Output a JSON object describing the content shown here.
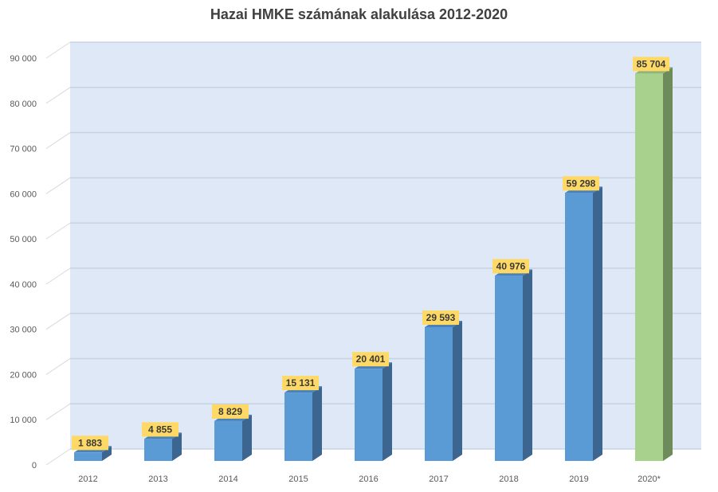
{
  "chart_data": {
    "type": "bar",
    "title": "Hazai HMKE számának alakulása 2012-2020",
    "xlabel": "",
    "ylabel": "",
    "categories": [
      "2012",
      "2013",
      "2014",
      "2015",
      "2016",
      "2017",
      "2018",
      "2019",
      "2020*"
    ],
    "values": [
      1883,
      4855,
      8829,
      15131,
      20401,
      29593,
      40976,
      59298,
      85704
    ],
    "value_labels": [
      "1 883",
      "4 855",
      "8 829",
      "15 131",
      "20 401",
      "29 593",
      "40 976",
      "59 298",
      "85 704"
    ],
    "yticks": [
      0,
      10000,
      20000,
      30000,
      40000,
      50000,
      60000,
      70000,
      80000,
      90000
    ],
    "ytick_labels": [
      "0",
      "10 000",
      "20 000",
      "30 000",
      "40 000",
      "50 000",
      "60 000",
      "70 000",
      "80 000",
      "90 000"
    ],
    "ylim": [
      0,
      90000
    ],
    "grid": true,
    "legend": null,
    "style": "3d-column",
    "colors": {
      "bar": "#5B9BD5",
      "bar_side": "#3C6690",
      "bar_top": "#4A82B8",
      "highlight_bar": "#A9D18E",
      "highlight_side": "#6E8B5A",
      "highlight_top": "#8FB577",
      "label_bg": "#FFD966",
      "wall": "#DEE8F6",
      "grid": "#C8D3E2"
    },
    "highlight_index": 8
  }
}
